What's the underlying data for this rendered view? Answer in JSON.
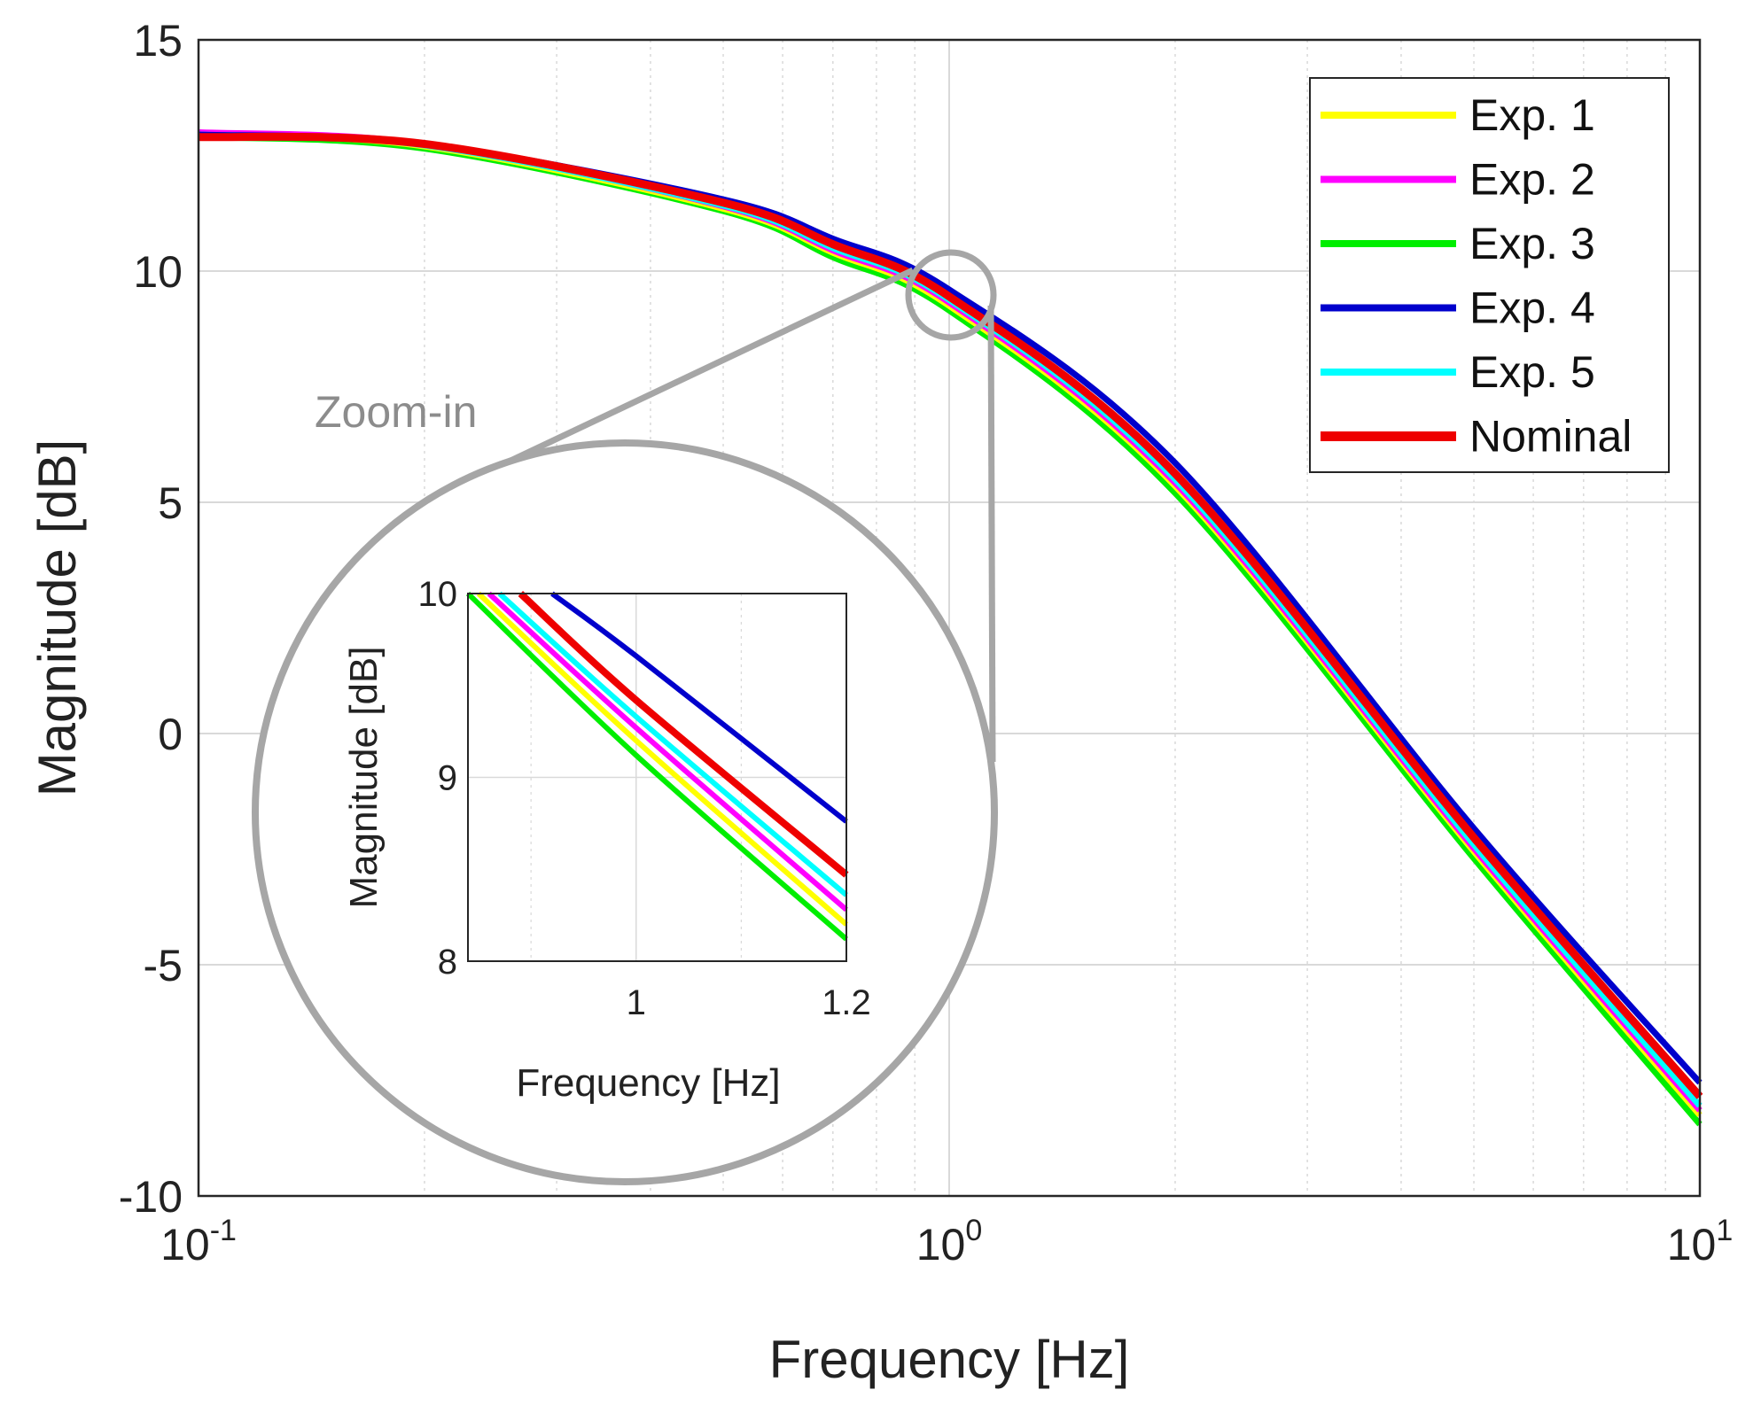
{
  "chart_data": [
    {
      "id": "main",
      "type": "line",
      "xscale": "log",
      "xlim": [
        0.1,
        10
      ],
      "ylim": [
        -10,
        15
      ],
      "xlabel": "Frequency [Hz]",
      "ylabel": "Magnitude [dB]",
      "grid": true,
      "minor_grid": true,
      "legend_position": "top-right",
      "x_ticks": [
        {
          "value": 0.1,
          "base": "10",
          "exp": "-1"
        },
        {
          "value": 1,
          "base": "10",
          "exp": "0"
        },
        {
          "value": 10,
          "base": "10",
          "exp": "1"
        }
      ],
      "y_ticks": [
        {
          "value": 15,
          "label": "15"
        },
        {
          "value": 10,
          "label": "10"
        },
        {
          "value": 5,
          "label": "5"
        },
        {
          "value": 0,
          "label": "0"
        },
        {
          "value": -5,
          "label": "-5"
        },
        {
          "value": -10,
          "label": "-10"
        }
      ],
      "series": [
        {
          "name": "Exp. 1",
          "color": "#ffff00",
          "x": [
            0.1,
            0.2,
            0.5,
            0.7,
            1,
            2,
            5,
            10
          ],
          "y": [
            12.95,
            12.7,
            11.35,
            10.4,
            9.25,
            5.35,
            -2.55,
            -8.25
          ]
        },
        {
          "name": "Exp. 2",
          "color": "#ff00ff",
          "x": [
            0.1,
            0.2,
            0.5,
            0.7,
            1,
            2,
            5,
            10
          ],
          "y": [
            13.0,
            12.75,
            11.4,
            10.45,
            9.32,
            5.42,
            -2.48,
            -8.15
          ]
        },
        {
          "name": "Exp. 3",
          "color": "#00ee00",
          "x": [
            0.1,
            0.2,
            0.5,
            0.7,
            1,
            2,
            5,
            10
          ],
          "y": [
            12.9,
            12.65,
            11.3,
            10.3,
            9.15,
            5.2,
            -2.7,
            -8.45
          ]
        },
        {
          "name": "Exp. 4",
          "color": "#0000cc",
          "x": [
            0.1,
            0.2,
            0.5,
            0.7,
            1,
            2,
            5,
            10
          ],
          "y": [
            12.95,
            12.75,
            11.55,
            10.7,
            9.6,
            5.85,
            -2.05,
            -7.55
          ]
        },
        {
          "name": "Exp. 5",
          "color": "#00ffff",
          "x": [
            0.1,
            0.2,
            0.5,
            0.7,
            1,
            2,
            5,
            10
          ],
          "y": [
            12.95,
            12.72,
            11.42,
            10.5,
            9.38,
            5.5,
            -2.4,
            -8.05
          ]
        },
        {
          "name": "Nominal",
          "color": "#ee0000",
          "x": [
            0.1,
            0.2,
            0.5,
            0.7,
            1,
            2,
            5,
            10
          ],
          "y": [
            12.9,
            12.75,
            11.48,
            10.58,
            9.45,
            5.62,
            -2.25,
            -7.85
          ]
        }
      ]
    },
    {
      "id": "inset",
      "type": "line",
      "xscale": "linear",
      "xlim": [
        0.84,
        1.2
      ],
      "ylim": [
        8,
        10
      ],
      "xlabel": "Frequency [Hz]",
      "ylabel": "Magnitude [dB]",
      "grid": true,
      "x_ticks": [
        {
          "value": 1,
          "label": "1"
        },
        {
          "value": 1.2,
          "label": "1.2"
        }
      ],
      "y_ticks": [
        {
          "value": 10,
          "label": "10"
        },
        {
          "value": 9,
          "label": "9"
        },
        {
          "value": 8,
          "label": "8"
        }
      ],
      "series": [
        {
          "name": "Exp. 1",
          "color": "#ffff00",
          "x": [
            0.85,
            1.0,
            1.2
          ],
          "y": [
            10.0,
            9.2,
            8.2
          ]
        },
        {
          "name": "Exp. 2",
          "color": "#ff00ff",
          "x": [
            0.86,
            1.0,
            1.2
          ],
          "y": [
            10.0,
            9.27,
            8.28
          ]
        },
        {
          "name": "Exp. 3",
          "color": "#00ee00",
          "x": [
            0.84,
            1.0,
            1.2
          ],
          "y": [
            10.0,
            9.12,
            8.12
          ]
        },
        {
          "name": "Exp. 5",
          "color": "#00ffff",
          "x": [
            0.87,
            1.0,
            1.2
          ],
          "y": [
            10.0,
            9.33,
            8.36
          ]
        },
        {
          "name": "Nominal",
          "color": "#ee0000",
          "x": [
            0.89,
            1.0,
            1.2
          ],
          "y": [
            10.0,
            9.42,
            8.47
          ]
        },
        {
          "name": "Exp. 4",
          "color": "#0000cc",
          "x": [
            0.92,
            1.0,
            1.2
          ],
          "y": [
            10.0,
            9.66,
            8.76
          ]
        }
      ]
    }
  ],
  "annotations": {
    "zoom_label": "Zoom-in",
    "grid_color": "#d9d9d9",
    "zoom_color": "#a6a6a6"
  }
}
